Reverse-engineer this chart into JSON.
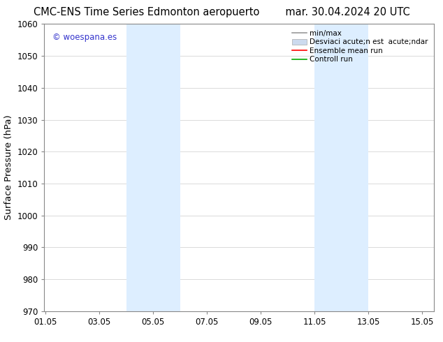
{
  "title_left": "CMC-ENS Time Series Edmonton aeropuerto",
  "title_right": "mar. 30.04.2024 20 UTC",
  "ylabel": "Surface Pressure (hPa)",
  "xlim": [
    1.0,
    15.5
  ],
  "ylim": [
    970,
    1060
  ],
  "yticks": [
    970,
    980,
    990,
    1000,
    1010,
    1020,
    1030,
    1040,
    1050,
    1060
  ],
  "xticks": [
    1.05,
    3.05,
    5.05,
    7.05,
    9.05,
    11.05,
    13.05,
    15.05
  ],
  "xtick_labels": [
    "01.05",
    "03.05",
    "05.05",
    "07.05",
    "09.05",
    "11.05",
    "13.05",
    "15.05"
  ],
  "shaded_bands": [
    {
      "x_start": 4.05,
      "x_end": 5.05
    },
    {
      "x_start": 5.05,
      "x_end": 6.05
    },
    {
      "x_start": 11.05,
      "x_end": 12.05
    },
    {
      "x_start": 12.05,
      "x_end": 13.05
    }
  ],
  "shade_color": "#ddeeff",
  "watermark_text": "© woespana.es",
  "watermark_color": "#3333cc",
  "legend_labels": [
    "min/max",
    "Desviaci acute;n est  acute;ndar",
    "Ensemble mean run",
    "Controll run"
  ],
  "legend_colors": [
    "#999999",
    "#ccdaee",
    "#ff0000",
    "#00aa00"
  ],
  "bg_color": "#ffffff",
  "grid_color": "#cccccc",
  "title_fontsize": 10.5,
  "tick_fontsize": 8.5,
  "ylabel_fontsize": 9.5,
  "legend_fontsize": 7.5
}
